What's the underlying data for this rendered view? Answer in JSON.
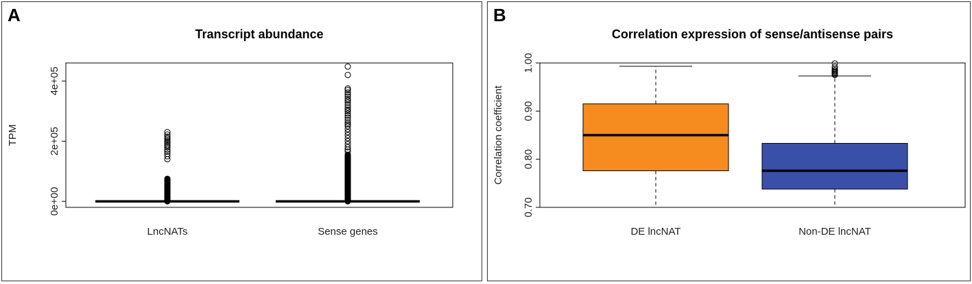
{
  "chart_data": [
    {
      "panel_label": "A",
      "type": "box",
      "title": "Transcript abundance",
      "xlabel": "",
      "ylabel": "TPM",
      "ylim": [
        -20000,
        460000
      ],
      "yticks": [
        0,
        200000,
        400000
      ],
      "yticklabels": [
        "0e+00",
        "2e+05",
        "4e+05"
      ],
      "categories": [
        "LncNATs",
        "Sense genes"
      ],
      "boxes": [
        {
          "name": "LncNATs",
          "min": 0,
          "q1": 0,
          "median": 0,
          "q3": 0,
          "max": 0,
          "fill": "#ffffff",
          "outlier_band": [
            0,
            75000
          ],
          "outliers": [
            140000,
            150000,
            158000,
            165000,
            172000,
            180000,
            185000,
            190000,
            195000,
            200000,
            205000,
            210000,
            215000,
            222000,
            230000
          ]
        },
        {
          "name": "Sense genes",
          "min": 0,
          "q1": 0,
          "median": 0,
          "q3": 0,
          "max": 0,
          "fill": "#ffffff",
          "outlier_band": [
            0,
            155000
          ],
          "outliers": [
            165000,
            172000,
            180000,
            190000,
            200000,
            210000,
            220000,
            230000,
            240000,
            250000,
            256000,
            262000,
            270000,
            278000,
            285000,
            292000,
            300000,
            305000,
            312000,
            320000,
            328000,
            335000,
            340000,
            348000,
            355000,
            362000,
            370000,
            375000,
            420000,
            448000
          ]
        }
      ]
    },
    {
      "panel_label": "B",
      "type": "box",
      "title": "Correlation expression of sense/antisense pairs",
      "xlabel": "",
      "ylabel": "Correlation coefficient",
      "ylim": [
        0.7,
        1.0
      ],
      "yticks": [
        0.7,
        0.8,
        0.9,
        1.0
      ],
      "yticklabels": [
        "0.70",
        "0.80",
        "0.90",
        "1.00"
      ],
      "categories": [
        "DE lncNAT",
        "Non-DE lncNAT"
      ],
      "boxes": [
        {
          "name": "DE lncNAT",
          "min": 0.7,
          "q1": 0.776,
          "median": 0.85,
          "q3": 0.915,
          "max": 0.993,
          "fill": "#f68b1f",
          "outliers": []
        },
        {
          "name": "Non-DE lncNAT",
          "min": 0.7,
          "q1": 0.738,
          "median": 0.776,
          "q3": 0.833,
          "max": 0.973,
          "fill": "#3a50a8",
          "outliers": [
            0.975,
            0.977,
            0.979,
            0.981,
            0.983,
            0.985,
            0.988,
            0.992,
            0.999
          ]
        }
      ]
    }
  ]
}
